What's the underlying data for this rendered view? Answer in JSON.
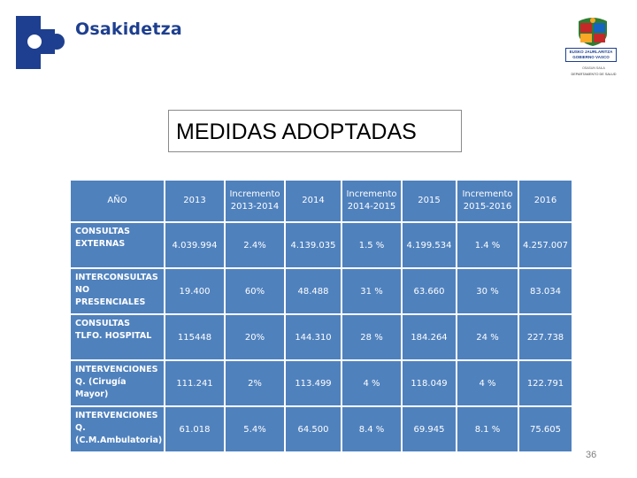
{
  "brand": {
    "name": "Osakidetza"
  },
  "government": {
    "line1": "EUSKO JAURLARITZA",
    "line2": "GOBIERNO VASCO",
    "sub1": "OSASUN SAILA",
    "sub2": "DEPARTAMENTO DE SALUD"
  },
  "colors": {
    "brand": "#1e3f8f",
    "table": "#4f81bd"
  },
  "title": "MEDIDAS ADOPTADAS",
  "table": {
    "headers": [
      "AÑO",
      "2013",
      "Incremento 2013-2014",
      "2014",
      "Incremento 2014-2015",
      "2015",
      "Incremento 2015-2016",
      "2016"
    ],
    "rows": [
      {
        "label": "CONSULTAS EXTERNAS",
        "cells": [
          "4.039.994",
          "2.4%",
          "4.139.035",
          "1.5 %",
          "4.199.534",
          "1.4 %",
          "4.257.007"
        ]
      },
      {
        "label": "INTERCONSULTAS NO PRESENCIALES",
        "cells": [
          "19.400",
          "60%",
          "48.488",
          "31 %",
          "63.660",
          "30 %",
          "83.034"
        ]
      },
      {
        "label": "CONSULTAS TLFO. HOSPITAL",
        "cells": [
          "115448",
          "20%",
          "144.310",
          "28 %",
          "184.264",
          "24 %",
          "227.738"
        ]
      },
      {
        "label": "INTERVENCIONES Q. (Cirugía Mayor)",
        "cells": [
          "111.241",
          "2%",
          "113.499",
          "4 %",
          "118.049",
          "4 %",
          "122.791"
        ]
      },
      {
        "label": "INTERVENCIONES Q. (C.M.Ambulatoria)",
        "cells": [
          "61.018",
          "5.4%",
          "64.500",
          "8.4 %",
          "69.945",
          "8.1 %",
          "75.605"
        ]
      }
    ]
  },
  "page_number": "36"
}
